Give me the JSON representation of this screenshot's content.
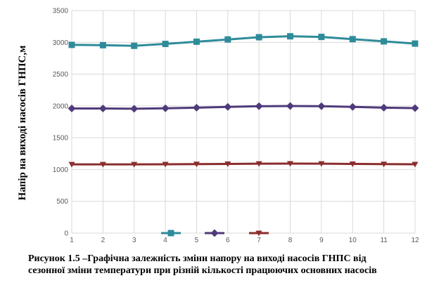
{
  "chart_data": {
    "type": "line",
    "title": "",
    "xlabel": "",
    "ylabel": "Напір на виході насосів ГНПС,м",
    "x": [
      1,
      2,
      3,
      4,
      5,
      6,
      7,
      8,
      9,
      10,
      11,
      12
    ],
    "ylim": [
      0,
      3500
    ],
    "yticks": [
      0,
      500,
      1000,
      1500,
      2000,
      2500,
      3000,
      3500
    ],
    "grid": true,
    "legend_position": "bottom",
    "series": [
      {
        "name": "",
        "color": "#2e8b9a",
        "marker": "square",
        "values": [
          2960,
          2955,
          2945,
          2975,
          3010,
          3045,
          3080,
          3095,
          3085,
          3050,
          3015,
          2980
        ]
      },
      {
        "name": "",
        "color": "#4f3a7a",
        "marker": "diamond",
        "values": [
          1960,
          1960,
          1955,
          1962,
          1972,
          1985,
          1995,
          1998,
          1995,
          1985,
          1972,
          1965
        ]
      },
      {
        "name": "",
        "color": "#8b2d2d",
        "marker": "triangle-down",
        "values": [
          1080,
          1080,
          1080,
          1082,
          1085,
          1088,
          1092,
          1093,
          1092,
          1088,
          1085,
          1082
        ]
      }
    ]
  },
  "caption": {
    "line1": "Рисунок 1.5 –Графічна залежність зміни напору на виході насосів ГНПС від",
    "line2": "сезонної зміни температури при різній кількості працюючих основних насосів"
  }
}
